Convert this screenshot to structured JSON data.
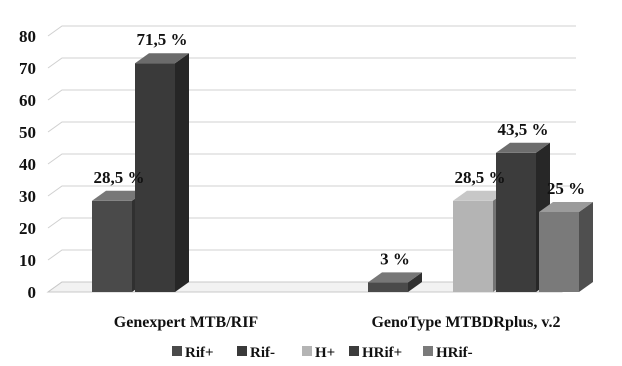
{
  "chart_data": {
    "type": "bar",
    "style": "3d-clustered-column",
    "title": "",
    "xlabel": "",
    "ylabel": "",
    "ylim": [
      0,
      80
    ],
    "yticks": [
      0,
      10,
      20,
      30,
      40,
      50,
      60,
      70,
      80
    ],
    "grid": true,
    "legend_position": "bottom",
    "categories": [
      "Genexpert MTB/RIF",
      "GenoType MTBDRplus, v.2"
    ],
    "series": [
      {
        "name": "Rif+",
        "color": "#4a4a4a",
        "values": [
          28.5,
          null
        ]
      },
      {
        "name": "Rif-",
        "color": "#3a3a3a",
        "values": [
          71.5,
          null
        ]
      },
      {
        "name": "H+",
        "color": "#b4b4b4",
        "values": [
          null,
          28.5
        ]
      },
      {
        "name": "HRif+",
        "color": "#3c3c3c",
        "values": [
          null,
          43.5
        ]
      },
      {
        "name": "HRif-",
        "color": "#7a7a7a",
        "values": [
          null,
          25
        ]
      }
    ],
    "extra_bars": [
      {
        "category_index": 1,
        "value": 3,
        "color": "#4a4a4a"
      }
    ],
    "data_labels": {
      "s0c0": "28,5 %",
      "s1c0": "71,5 %",
      "s2c1": "28,5 %",
      "s3c1": "43,5 %",
      "s4c1": "25 %",
      "x0c1": "3 %"
    }
  }
}
